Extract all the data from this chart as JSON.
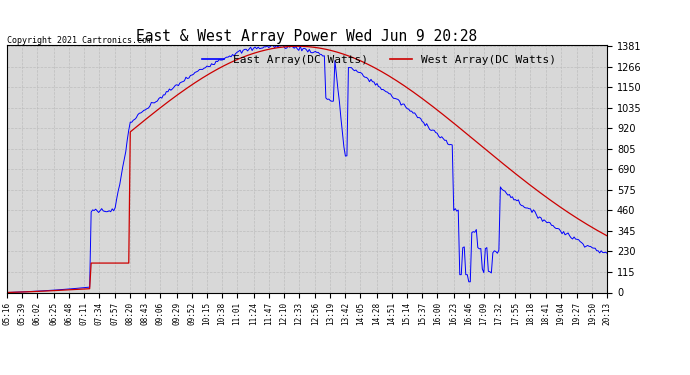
{
  "title": "East & West Array Power Wed Jun 9 20:28",
  "copyright": "Copyright 2021 Cartronics.com",
  "legend_east": "East Array(DC Watts)",
  "legend_west": "West Array(DC Watts)",
  "east_color": "#0000ff",
  "west_color": "#cc0000",
  "background_color": "#ffffff",
  "plot_bg_color": "#d8d8d8",
  "grid_color": "#aaaaaa",
  "yticks": [
    0.0,
    115.0,
    230.1,
    345.1,
    460.2,
    575.2,
    690.3,
    805.3,
    920.4,
    1035.4,
    1150.5,
    1265.5,
    1380.6
  ],
  "ymax": 1380.6,
  "ymin": 0.0,
  "x_labels": [
    "05:16",
    "05:39",
    "06:02",
    "06:25",
    "06:48",
    "07:11",
    "07:34",
    "07:57",
    "08:20",
    "08:43",
    "09:06",
    "09:29",
    "09:52",
    "10:15",
    "10:38",
    "11:01",
    "11:24",
    "11:47",
    "12:10",
    "12:33",
    "12:56",
    "13:19",
    "13:42",
    "14:05",
    "14:28",
    "14:51",
    "15:14",
    "15:37",
    "16:00",
    "16:23",
    "16:46",
    "17:09",
    "17:32",
    "17:55",
    "18:18",
    "18:41",
    "19:04",
    "19:27",
    "19:50",
    "20:13"
  ]
}
